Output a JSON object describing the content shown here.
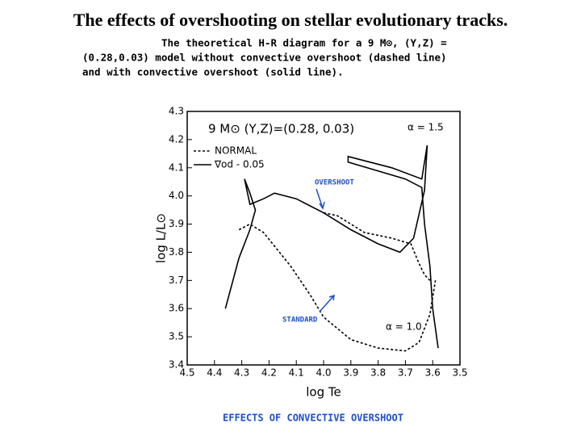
{
  "title": "The effects of overshooting on stellar evolutionary tracks.",
  "caption": [
    "The theoretical H-R diagram for a 9 M⊙, (Y,Z) =",
    "(0.28,0.03) model without convective overshoot (dashed line)",
    "and with convective overshoot (solid line)."
  ],
  "footer": "EFFECTS OF CONVECTIVE OVERSHOOT",
  "chart_data": {
    "type": "line",
    "xlabel": "log Te",
    "ylabel": "log L/L⊙",
    "xlim": [
      4.5,
      3.5
    ],
    "ylim": [
      3.4,
      4.3
    ],
    "xticks": [
      4.5,
      4.4,
      4.3,
      4.2,
      4.1,
      {
        "value": 4,
        "label": "4.0"
      },
      3.9,
      3.8,
      3.7,
      3.6,
      3.5
    ],
    "yticks": [
      3.4,
      3.5,
      3.6,
      3.7,
      3.8,
      3.9,
      {
        "value": 4,
        "label": "4.0"
      },
      4.1,
      4.2,
      4.3
    ],
    "annotations": [
      "9 M⊙ (Y,Z)=(0.28, 0.03)",
      "α = 1.5",
      "α = 1.0",
      "OVERSHOOT",
      "STANDARD"
    ],
    "series": [
      {
        "name": "NORMAL",
        "color": "#000000",
        "linestyle": "dashed",
        "x": [
          4.31,
          4.27,
          4.22,
          4.12,
          4.05,
          4.0,
          3.9,
          3.8,
          3.7,
          3.65,
          3.61,
          3.59,
          null,
          4.0,
          3.95,
          3.85,
          3.75,
          3.68,
          3.65,
          3.63,
          3.61
        ],
        "values": [
          3.88,
          3.9,
          3.87,
          3.75,
          3.65,
          3.57,
          3.49,
          3.46,
          3.45,
          3.48,
          3.58,
          3.7,
          null,
          3.94,
          3.93,
          3.87,
          3.85,
          3.83,
          3.76,
          3.72,
          3.7
        ]
      },
      {
        "name": "∇od - 0.05",
        "color": "#000000",
        "linestyle": "solid",
        "x": [
          4.36,
          4.31,
          4.27,
          4.25,
          4.27,
          4.29,
          4.27,
          4.22,
          4.18,
          4.1,
          4.0,
          3.9,
          3.8,
          3.72,
          3.67,
          3.63,
          3.62,
          3.64,
          3.75,
          3.91,
          3.91,
          3.7,
          3.64,
          3.63,
          3.61,
          3.6,
          3.58
        ],
        "values": [
          3.6,
          3.78,
          3.88,
          3.95,
          4.01,
          4.06,
          3.97,
          3.99,
          4.01,
          3.99,
          3.94,
          3.88,
          3.83,
          3.8,
          3.85,
          4.02,
          4.18,
          4.06,
          4.1,
          4.14,
          4.12,
          4.06,
          4.03,
          3.9,
          3.75,
          3.6,
          3.46
        ]
      }
    ]
  }
}
